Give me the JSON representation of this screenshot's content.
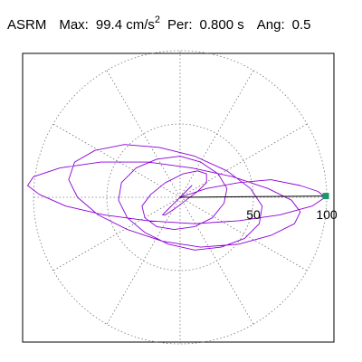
{
  "header": {
    "label": "ASRM",
    "max_label": "Max:",
    "max_value": "99.4 cm/s",
    "max_unit_exp": "2",
    "per_label": "Per:",
    "per_value": "0.800 s",
    "ang_label": "Ang:",
    "ang_value": "0.5"
  },
  "colors": {
    "trace": "#8a00d4",
    "marker": "#1a9a6a",
    "grid": "#777777",
    "frame": "#000000"
  },
  "chart_data": {
    "type": "scatter",
    "title": "",
    "xlabel": "",
    "ylabel": "",
    "polar": true,
    "r_max": 100,
    "r_ticks": [
      50,
      100
    ],
    "r_tick_labels": [
      "50",
      "100"
    ],
    "grid": true,
    "grid_rings": [
      50,
      100
    ],
    "spokes_deg": [
      0,
      30,
      60,
      90,
      120,
      150,
      180,
      210,
      240,
      270,
      300,
      330
    ],
    "peak": {
      "r": 99.4,
      "angle_deg": 0.5
    },
    "series": [
      {
        "x": [
          0,
          18,
          40,
          62,
          82,
          94,
          99,
          90,
          68,
          40,
          10,
          -22,
          -52,
          -78,
          -96,
          -104,
          -100,
          -82,
          -54,
          -22,
          8,
          36,
          60,
          76,
          82,
          78,
          62,
          40,
          14,
          -12,
          -36,
          -56,
          -70,
          -76,
          -72,
          -58,
          -38,
          -14,
          10,
          32,
          48,
          56,
          54,
          44,
          28,
          10,
          -8,
          -24,
          -36,
          -42,
          -40,
          -30,
          -16,
          0,
          14,
          26,
          32,
          30,
          22,
          10,
          -4,
          -16,
          -24,
          -26,
          -20,
          -10,
          2,
          12,
          18,
          18,
          12,
          4,
          -4,
          -10,
          -12,
          -8,
          -2,
          4,
          8,
          8,
          4,
          0
        ],
        "y": [
          0,
          6,
          10,
          12,
          8,
          4,
          0,
          -6,
          -12,
          -16,
          -18,
          -16,
          -12,
          -6,
          2,
          8,
          14,
          20,
          24,
          24,
          20,
          14,
          6,
          -2,
          -10,
          -18,
          -26,
          -32,
          -34,
          -30,
          -22,
          -12,
          0,
          12,
          24,
          32,
          36,
          34,
          28,
          18,
          6,
          -6,
          -18,
          -28,
          -34,
          -36,
          -32,
          -24,
          -14,
          -2,
          10,
          20,
          26,
          28,
          24,
          16,
          6,
          -4,
          -14,
          -20,
          -22,
          -20,
          -14,
          -6,
          2,
          10,
          16,
          18,
          16,
          10,
          4,
          -2,
          -8,
          -12,
          -12,
          -8,
          -2,
          4,
          8,
          8,
          4,
          0
        ]
      }
    ]
  }
}
